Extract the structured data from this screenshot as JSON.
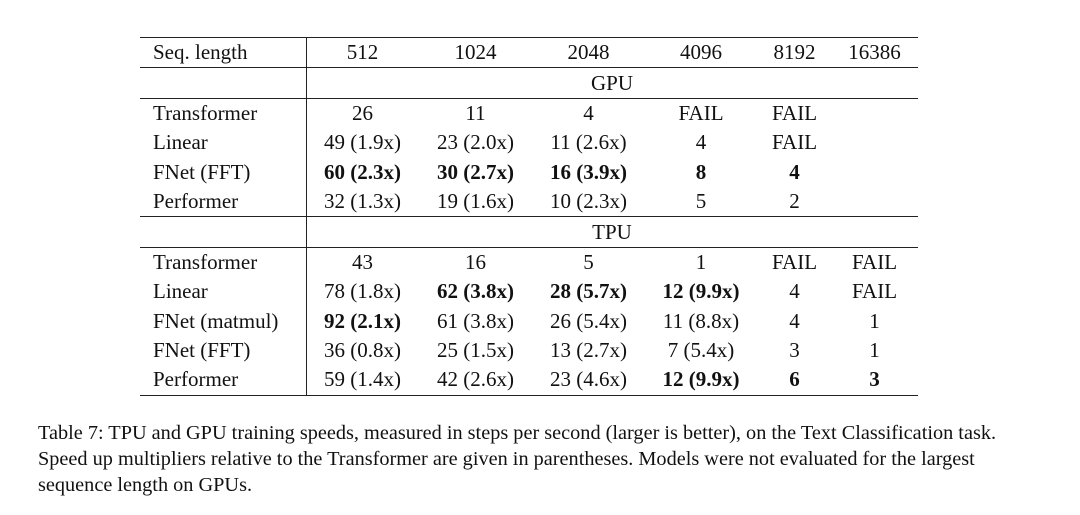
{
  "table": {
    "header": [
      "Seq. length",
      "512",
      "1024",
      "2048",
      "4096",
      "8192",
      "16386"
    ],
    "sections": [
      {
        "label": "GPU",
        "rows": [
          {
            "cells": [
              "Transformer",
              "26",
              "11",
              "4",
              "FAIL",
              "FAIL",
              ""
            ],
            "bold": []
          },
          {
            "cells": [
              "Linear",
              "49 (1.9x)",
              "23 (2.0x)",
              "11 (2.6x)",
              "4",
              "FAIL",
              ""
            ],
            "bold": []
          },
          {
            "cells": [
              "FNet (FFT)",
              "60 (2.3x)",
              "30 (2.7x)",
              "16 (3.9x)",
              "8",
              "4",
              ""
            ],
            "bold": [
              1,
              2,
              3,
              4,
              5
            ]
          },
          {
            "cells": [
              "Performer",
              "32 (1.3x)",
              "19 (1.6x)",
              "10 (2.3x)",
              "5",
              "2",
              ""
            ],
            "bold": []
          }
        ]
      },
      {
        "label": "TPU",
        "rows": [
          {
            "cells": [
              "Transformer",
              "43",
              "16",
              "5",
              "1",
              "FAIL",
              "FAIL"
            ],
            "bold": []
          },
          {
            "cells": [
              "Linear",
              "78 (1.8x)",
              "62 (3.8x)",
              "28 (5.7x)",
              "12 (9.9x)",
              "4",
              "FAIL"
            ],
            "bold": [
              2,
              3,
              4
            ]
          },
          {
            "cells": [
              "FNet (matmul)",
              "92 (2.1x)",
              "61 (3.8x)",
              "26 (5.4x)",
              "11 (8.8x)",
              "4",
              "1"
            ],
            "bold": [
              1
            ]
          },
          {
            "cells": [
              "FNet (FFT)",
              "36 (0.8x)",
              "25 (1.5x)",
              "13 (2.7x)",
              "7 (5.4x)",
              "3",
              "1"
            ],
            "bold": []
          },
          {
            "cells": [
              "Performer",
              "59 (1.4x)",
              "42 (2.6x)",
              "23 (4.6x)",
              "12 (9.9x)",
              "6",
              "3"
            ],
            "bold": [
              4,
              5,
              6
            ]
          }
        ]
      }
    ]
  },
  "caption": "Table 7: TPU and GPU training speeds, measured in steps per second (larger is better), on the Text Classification task. Speed up multipliers relative to the Transformer are given in parentheses. Models were not evaluated for the largest sequence length on GPUs."
}
